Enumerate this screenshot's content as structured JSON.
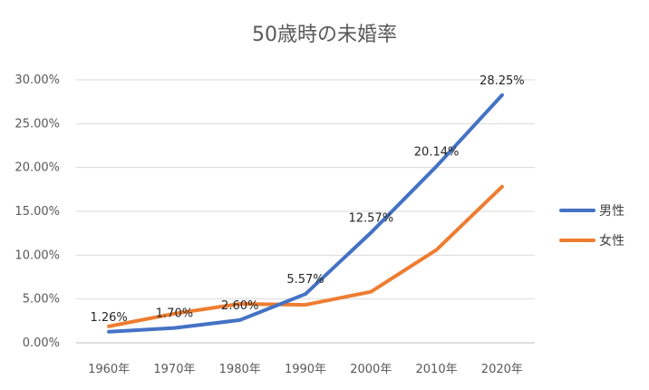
{
  "chart_data": {
    "type": "line",
    "title": "50歳時の未婚率",
    "xlabel": "",
    "ylabel": "",
    "categories": [
      "1960年",
      "1970年",
      "1980年",
      "1990年",
      "2000年",
      "2010年",
      "2020年"
    ],
    "ylim": [
      0,
      30
    ],
    "yticks": [
      "0.00%",
      "5.00%",
      "10.00%",
      "15.00%",
      "20.00%",
      "25.00%",
      "30.00%"
    ],
    "ytick_values": [
      0,
      5,
      10,
      15,
      20,
      25,
      30
    ],
    "grid": true,
    "legend": "right",
    "series": [
      {
        "name": "男性",
        "color": "#4472C4",
        "values": [
          1.26,
          1.7,
          2.6,
          5.57,
          12.57,
          20.14,
          28.25
        ],
        "labels": [
          "1.26%",
          "1.70%",
          "2.60%",
          "5.57%",
          "12.57%",
          "20.14%",
          "28.25%"
        ]
      },
      {
        "name": "女性",
        "color": "#ED7D31",
        "values": [
          1.88,
          3.33,
          4.45,
          4.33,
          5.82,
          10.61,
          17.81
        ]
      }
    ]
  }
}
